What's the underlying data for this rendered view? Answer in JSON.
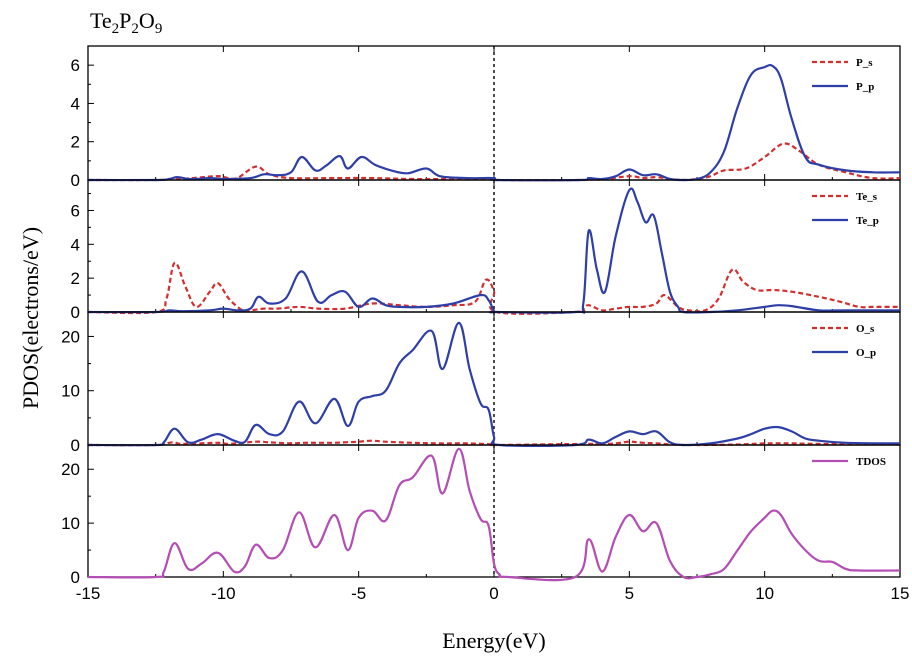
{
  "chart_data": {
    "type": "line",
    "title_parts": [
      {
        "t": "Te",
        "sub": false
      },
      {
        "t": "2",
        "sub": true
      },
      {
        "t": "P",
        "sub": false
      },
      {
        "t": "2",
        "sub": true
      },
      {
        "t": "O",
        "sub": false
      },
      {
        "t": "9",
        "sub": true
      }
    ],
    "xlabel": "Energy(eV)",
    "ylabel": "PDOS(electrons/eV)",
    "xlim": [
      -15,
      15
    ],
    "xticks": [
      -15,
      -10,
      -5,
      0,
      5,
      10,
      15
    ],
    "fermi_level": 0,
    "panels": [
      {
        "ylim": [
          0,
          7
        ],
        "yticks": [
          0,
          2,
          4,
          6
        ],
        "legend_position": "top-right",
        "series": [
          {
            "name": "P_s",
            "color": "#d32f2f",
            "style": "dashed",
            "x": [
              -15,
              -12.5,
              -12,
              -11.5,
              -10.3,
              -10,
              -9.5,
              -8.8,
              -8.3,
              -7.5,
              -6,
              -4.5,
              -3,
              -1.5,
              0,
              0.1,
              3.3,
              3.6,
              4,
              5,
              5.5,
              6,
              6.5,
              7,
              7.5,
              8,
              8.5,
              9.3,
              10,
              10.7,
              11.3,
              12,
              13,
              14,
              15
            ],
            "y": [
              0,
              0,
              0.05,
              0.05,
              0.2,
              0.15,
              0.1,
              0.7,
              0.3,
              0.1,
              0.1,
              0.1,
              0.05,
              0.05,
              0.05,
              0,
              0,
              0.05,
              0.02,
              0.2,
              0.1,
              0.15,
              0.05,
              0,
              0.05,
              0.2,
              0.5,
              0.6,
              1.2,
              1.9,
              1.5,
              0.8,
              0.4,
              0.1,
              0.1
            ]
          },
          {
            "name": "P_p",
            "color": "#2e3fa8",
            "style": "solid",
            "x": [
              -15,
              -12.5,
              -12,
              -11.7,
              -11.2,
              -10.5,
              -10,
              -9,
              -8.5,
              -8,
              -7.5,
              -7.1,
              -6.6,
              -6.2,
              -5.7,
              -5.4,
              -4.9,
              -4.4,
              -3.8,
              -3.2,
              -2.5,
              -2,
              -1,
              0,
              0.1,
              3.2,
              3.5,
              4,
              4.5,
              5,
              5.5,
              6,
              6.5,
              7,
              7.5,
              8,
              8.5,
              9,
              9.5,
              10,
              10.3,
              10.6,
              11,
              11.5,
              12,
              13,
              14,
              15
            ],
            "y": [
              0,
              0,
              0.05,
              0.15,
              0.05,
              0.1,
              0.05,
              0.1,
              0.3,
              0.25,
              0.4,
              1.2,
              0.5,
              0.75,
              1.25,
              0.6,
              1.2,
              0.8,
              0.5,
              0.35,
              0.6,
              0.2,
              0.1,
              0.1,
              0,
              0,
              0.1,
              0.05,
              0.2,
              0.55,
              0.25,
              0.3,
              0.05,
              0,
              0.05,
              0.4,
              1.5,
              3.8,
              5.5,
              5.9,
              5.95,
              5.3,
              3.2,
              1.2,
              0.8,
              0.5,
              0.4,
              0.4
            ]
          }
        ],
        "legend": [
          "P_s",
          "P_p"
        ]
      },
      {
        "ylim": [
          0,
          7.8
        ],
        "yticks": [
          0,
          2,
          4,
          6
        ],
        "legend_position": "top-right",
        "series": [
          {
            "name": "Te_s",
            "color": "#d32f2f",
            "style": "dashed",
            "x": [
              -15,
              -12.5,
              -12.1,
              -11.8,
              -11.4,
              -11,
              -10.5,
              -10.2,
              -9.8,
              -9.3,
              -9,
              -8.5,
              -8,
              -7.2,
              -6.5,
              -5.5,
              -4.5,
              -3.5,
              -2.5,
              -1.5,
              -0.7,
              -0.3,
              0,
              0.1,
              3,
              3.3,
              3.5,
              4,
              4.5,
              5,
              5.5,
              6,
              6.3,
              6.8,
              7.2,
              7.8,
              8.3,
              8.8,
              9.2,
              9.7,
              10.3,
              11,
              12,
              12.8,
              13.5,
              14,
              15
            ],
            "y": [
              0,
              0,
              0.8,
              2.9,
              1.5,
              0.3,
              1.2,
              1.7,
              0.8,
              0.1,
              0.1,
              0.2,
              0.2,
              0.3,
              0.2,
              0.2,
              0.5,
              0.4,
              0.3,
              0.4,
              0.6,
              1.9,
              1.2,
              0,
              0,
              0.2,
              0.4,
              0.1,
              0.2,
              0.3,
              0.3,
              0.5,
              1.0,
              0.3,
              0.1,
              0.1,
              0.8,
              2.5,
              1.8,
              1.3,
              1.3,
              1.2,
              0.9,
              0.6,
              0.3,
              0.3,
              0.3
            ]
          },
          {
            "name": "Te_p",
            "color": "#2e3fa8",
            "style": "solid",
            "x": [
              -15,
              -12.5,
              -12,
              -11.5,
              -10.5,
              -10,
              -9.5,
              -9,
              -8.7,
              -8.3,
              -7.7,
              -7.1,
              -6.5,
              -6,
              -5.5,
              -5,
              -4.5,
              -4,
              -3.5,
              -2.5,
              -1.5,
              -0.5,
              -0.2,
              0,
              0.1,
              3,
              3.3,
              3.5,
              3.8,
              4.1,
              4.5,
              5,
              5.3,
              5.6,
              5.9,
              6.2,
              6.5,
              6.8,
              7,
              8,
              9,
              10,
              10.5,
              11,
              12,
              13,
              15
            ],
            "y": [
              0,
              0,
              0.1,
              0.05,
              0.1,
              0.2,
              0.1,
              0.2,
              0.9,
              0.5,
              0.8,
              2.4,
              0.6,
              1.0,
              1.2,
              0.3,
              0.8,
              0.4,
              0.3,
              0.3,
              0.5,
              1.0,
              0.7,
              0.05,
              0,
              0,
              0.5,
              4.8,
              2.5,
              1.2,
              4.5,
              7.2,
              6.5,
              5.3,
              5.7,
              3.5,
              1.2,
              0.3,
              0,
              0,
              0.1,
              0.3,
              0.4,
              0.35,
              0.1,
              0.1,
              0.1
            ]
          }
        ],
        "legend": [
          "Te_s",
          "Te_p"
        ]
      },
      {
        "ylim": [
          0,
          24.5
        ],
        "yticks": [
          0,
          10,
          20
        ],
        "legend_position": "top-right",
        "series": [
          {
            "name": "O_s",
            "color": "#d32f2f",
            "style": "dashed",
            "x": [
              -15,
              -12.5,
              -12,
              -11.8,
              -11.5,
              -10.2,
              -9.8,
              -8.8,
              -8.3,
              -7.5,
              -7,
              -6,
              -5.5,
              -5,
              -4.5,
              -4,
              -3,
              -2,
              -1,
              0,
              0.1,
              3.5,
              3.8,
              4.5,
              5,
              5.5,
              6,
              7,
              9,
              10,
              11,
              12,
              15
            ],
            "y": [
              0,
              0,
              0.4,
              0.5,
              0.2,
              0.4,
              0.2,
              0.6,
              0.5,
              0.3,
              0.4,
              0.4,
              0.5,
              0.6,
              0.8,
              0.6,
              0.4,
              0.3,
              0.3,
              0.1,
              0,
              0.2,
              0.1,
              0.3,
              0.6,
              0.4,
              0.3,
              0,
              0.1,
              0.3,
              0.3,
              0.2,
              0.1
            ]
          },
          {
            "name": "O_p",
            "color": "#2e3fa8",
            "style": "solid",
            "x": [
              -15,
              -12.5,
              -12.2,
              -11.8,
              -11.3,
              -10.8,
              -10.2,
              -9.6,
              -9.2,
              -8.8,
              -8.3,
              -7.8,
              -7.2,
              -6.6,
              -5.9,
              -5.4,
              -5,
              -4.5,
              -4,
              -3.5,
              -3,
              -2.3,
              -1.9,
              -1.3,
              -0.9,
              -0.5,
              -0.2,
              0,
              0.2,
              3,
              3.5,
              4,
              4.5,
              5,
              5.5,
              6,
              6.5,
              7,
              8,
              9,
              9.5,
              10,
              10.5,
              11,
              11.5,
              12,
              13,
              15
            ],
            "y": [
              0,
              0,
              0.5,
              3.0,
              0.5,
              1.0,
              2.0,
              0.8,
              0.6,
              3.7,
              2.0,
              2.5,
              8.0,
              4.0,
              8.5,
              3.5,
              8.0,
              9.0,
              10.0,
              15.0,
              17.5,
              21.0,
              14.0,
              22.5,
              14.0,
              7.7,
              6.5,
              1.5,
              0,
              0,
              1.0,
              0.3,
              1.5,
              2.5,
              2.0,
              2.5,
              0.5,
              0,
              0.3,
              1.2,
              2.0,
              3.0,
              3.3,
              2.5,
              1.2,
              0.8,
              0.4,
              0.3
            ]
          }
        ],
        "legend": [
          "O_s",
          "O_p"
        ]
      },
      {
        "ylim": [
          0,
          24.5
        ],
        "yticks": [
          0,
          10,
          20
        ],
        "legend_position": "top-right",
        "series": [
          {
            "name": "TDOS",
            "color": "#b44db4",
            "style": "solid",
            "x": [
              -15,
              -12.5,
              -12.2,
              -11.8,
              -11.3,
              -10.8,
              -10.2,
              -9.6,
              -9.2,
              -8.8,
              -8.3,
              -7.8,
              -7.2,
              -6.6,
              -5.9,
              -5.4,
              -5,
              -4.5,
              -4,
              -3.5,
              -3,
              -2.3,
              -1.9,
              -1.3,
              -0.9,
              -0.5,
              -0.2,
              0,
              0.2,
              0.5,
              3,
              3.5,
              4,
              4.5,
              5,
              5.5,
              6,
              6.5,
              7,
              7.5,
              8,
              8.5,
              9,
              9.5,
              10,
              10.3,
              10.6,
              11,
              11.5,
              12,
              12.5,
              13,
              13.5,
              15
            ],
            "y": [
              0,
              0,
              1.0,
              6.3,
              1.5,
              2.5,
              4.5,
              1.0,
              2.0,
              6.0,
              3.5,
              5.0,
              12.0,
              5.5,
              11.5,
              5.0,
              11.0,
              12.3,
              10.5,
              17.0,
              18.5,
              22.5,
              15.5,
              23.8,
              16.0,
              10.8,
              9.5,
              2.5,
              0.5,
              0,
              0,
              7.0,
              1.0,
              7.5,
              11.5,
              8.5,
              10.0,
              3.0,
              0,
              0,
              0.5,
              1.5,
              5.0,
              8.5,
              11.0,
              12.3,
              11.5,
              8.0,
              5.0,
              3.0,
              2.8,
              1.5,
              1.2,
              1.2
            ]
          }
        ],
        "legend": [
          "TDOS"
        ]
      }
    ]
  }
}
